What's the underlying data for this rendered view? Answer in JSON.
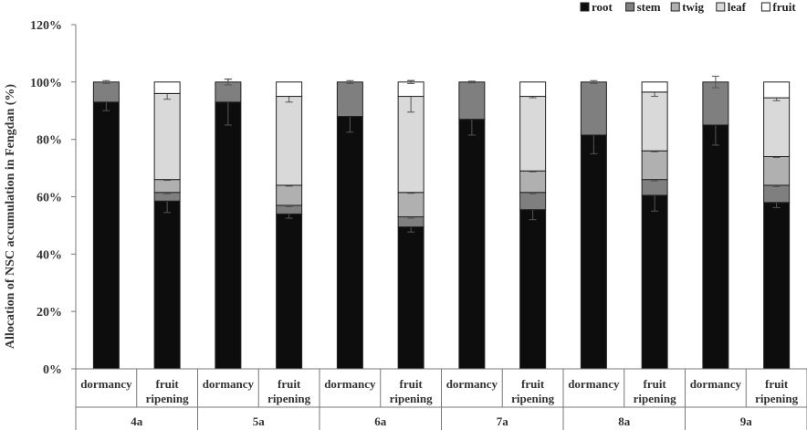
{
  "chart_data": {
    "type": "bar",
    "stacked": true,
    "ylabel": "Allocation of NSC accumulation in Fengdan (%)",
    "ylim": [
      0,
      120
    ],
    "y_ticks": [
      "0%",
      "20%",
      "40%",
      "60%",
      "80%",
      "100%",
      "120%"
    ],
    "grid": false,
    "legend_position": "top-right",
    "groups": [
      "4a",
      "5a",
      "6a",
      "7a",
      "8a",
      "9a"
    ],
    "stage_labels": {
      "dormancy": [
        "dormancy"
      ],
      "ripening": [
        "fruit",
        "ripening"
      ]
    },
    "categories": [
      "4a dormancy",
      "4a fruit ripening",
      "5a dormancy",
      "5a fruit ripening",
      "6a dormancy",
      "6a fruit ripening",
      "7a dormancy",
      "7a fruit ripening",
      "8a dormancy",
      "8a fruit ripening",
      "9a dormancy",
      "9a fruit ripening"
    ],
    "series": [
      {
        "name": "root",
        "color": "#0d0d0d",
        "values": [
          93,
          58.5,
          93,
          54,
          88,
          49.5,
          87,
          55.5,
          81.5,
          60.5,
          85,
          58
        ],
        "errors": [
          3,
          4,
          8,
          1.5,
          5.5,
          1.8,
          5.5,
          3.5,
          6.5,
          5.5,
          7,
          1.8
        ]
      },
      {
        "name": "stem",
        "color": "#7f7f7f",
        "values": [
          7,
          3,
          7,
          3,
          12,
          3.5,
          13,
          6,
          18.5,
          5.5,
          15,
          6
        ],
        "errors": [
          0.5,
          0.5,
          1,
          0.5,
          0.5,
          0.5,
          0.3,
          0.5,
          0.5,
          0.5,
          2,
          0.5
        ]
      },
      {
        "name": "twig",
        "color": "#b0b0b0",
        "values": [
          0,
          4.5,
          0,
          7,
          0,
          8.5,
          0,
          7.5,
          0,
          10,
          0,
          10
        ],
        "errors": [
          0,
          0.3,
          0,
          0.3,
          0,
          0.3,
          0,
          0.3,
          0,
          0.3,
          0,
          0.3
        ]
      },
      {
        "name": "leaf",
        "color": "#d9d9d9",
        "values": [
          0,
          30,
          0,
          31,
          0,
          33.5,
          0,
          26,
          0,
          20.5,
          0,
          20.5
        ],
        "errors": [
          0,
          2,
          0,
          2,
          0,
          5.5,
          0,
          0.5,
          0,
          1.5,
          0,
          1
        ]
      },
      {
        "name": "fruit",
        "color": "#ffffff",
        "values": [
          0,
          4,
          0,
          5,
          0,
          5,
          0,
          5,
          0,
          3.5,
          0,
          5.5
        ],
        "errors": [
          0,
          0,
          0,
          0,
          0,
          0.5,
          0,
          0,
          0,
          0,
          0,
          0
        ]
      }
    ]
  }
}
